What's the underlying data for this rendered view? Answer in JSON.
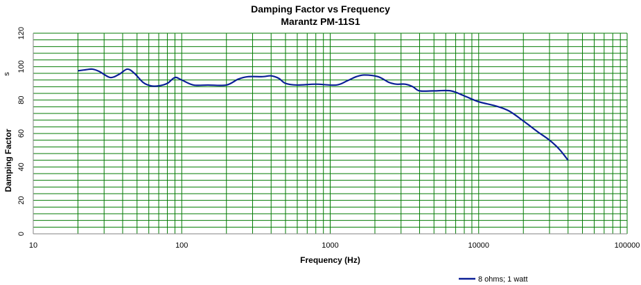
{
  "chart_data": {
    "type": "line",
    "title": "Damping Factor  vs Frequency",
    "subtitle": "Marantz PM-11S1",
    "xlabel": "Frequency (Hz)",
    "ylabel": "Damping Factor",
    "x_scale": "log",
    "xlim": [
      10,
      100000
    ],
    "ylim": [
      0,
      120
    ],
    "x_ticks": [
      "10",
      "100",
      "1000",
      "10000",
      "100000"
    ],
    "y_ticks": [
      "0",
      "20",
      "40",
      "60",
      "80",
      "100",
      "120"
    ],
    "y_minor_step": 4,
    "grid": true,
    "legend_position": "bottom-right",
    "y_axis_artifact": "s",
    "series": [
      {
        "name": "8 ohms; 1 watt",
        "color": "#0a1e96",
        "x": [
          20,
          22,
          25,
          28,
          33,
          38,
          43,
          48,
          55,
          62,
          70,
          80,
          90,
          100,
          120,
          150,
          200,
          240,
          280,
          350,
          400,
          450,
          500,
          600,
          800,
          1100,
          1300,
          1500,
          1700,
          2100,
          2500,
          2800,
          3200,
          3600,
          4000,
          5000,
          6500,
          8000,
          10000,
          13000,
          16000,
          20000,
          25000,
          30000,
          35000,
          40000
        ],
        "y": [
          97.5,
          98,
          98.5,
          97,
          93.5,
          95.5,
          98.5,
          96,
          90.5,
          88.5,
          88.5,
          90,
          93.5,
          92,
          89,
          89,
          89,
          92.5,
          94,
          94,
          94.5,
          93,
          90,
          89,
          89.5,
          89,
          91.5,
          94,
          95,
          94,
          90.5,
          89.5,
          89.5,
          88,
          85.5,
          85.5,
          85.5,
          82.5,
          79,
          76.5,
          73.5,
          67.5,
          61,
          56,
          50.5,
          44
        ]
      }
    ]
  }
}
